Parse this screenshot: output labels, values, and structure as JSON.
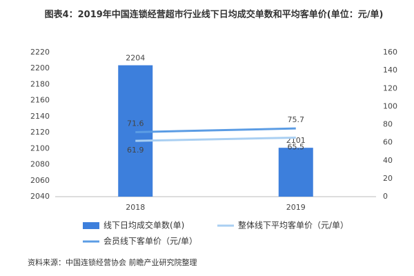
{
  "chart_data": {
    "type": "bar_line",
    "title": "图表4：2019年中国连锁经营超市行业线下日均成交单数和平均客单价(单位：元/单)",
    "source": "资料来源：中国连锁经营协会 前瞻产业研究院整理",
    "categories": [
      "2018",
      "2019"
    ],
    "series": [
      {
        "name": "线下日均成交单数(单)",
        "type": "bar",
        "color": "#3d7fdc",
        "values": [
          2204,
          2101
        ]
      },
      {
        "name": "整体线下平均客单价（元/单）",
        "type": "line",
        "axis": "y2",
        "color": "#a9cff2",
        "values": [
          61.9,
          65.5
        ]
      },
      {
        "name": "会员线下客单价（元/单）",
        "type": "line",
        "axis": "y2",
        "color": "#5b9ce4",
        "values": [
          71.6,
          75.7
        ]
      }
    ],
    "ylim": [
      2040,
      2220
    ],
    "yticks": [
      2040,
      2060,
      2080,
      2100,
      2120,
      2140,
      2160,
      2180,
      2200,
      2220
    ],
    "y2lim": [
      0,
      160
    ],
    "y2ticks": [
      0,
      20,
      40,
      60,
      80,
      100,
      120,
      140,
      160
    ]
  }
}
